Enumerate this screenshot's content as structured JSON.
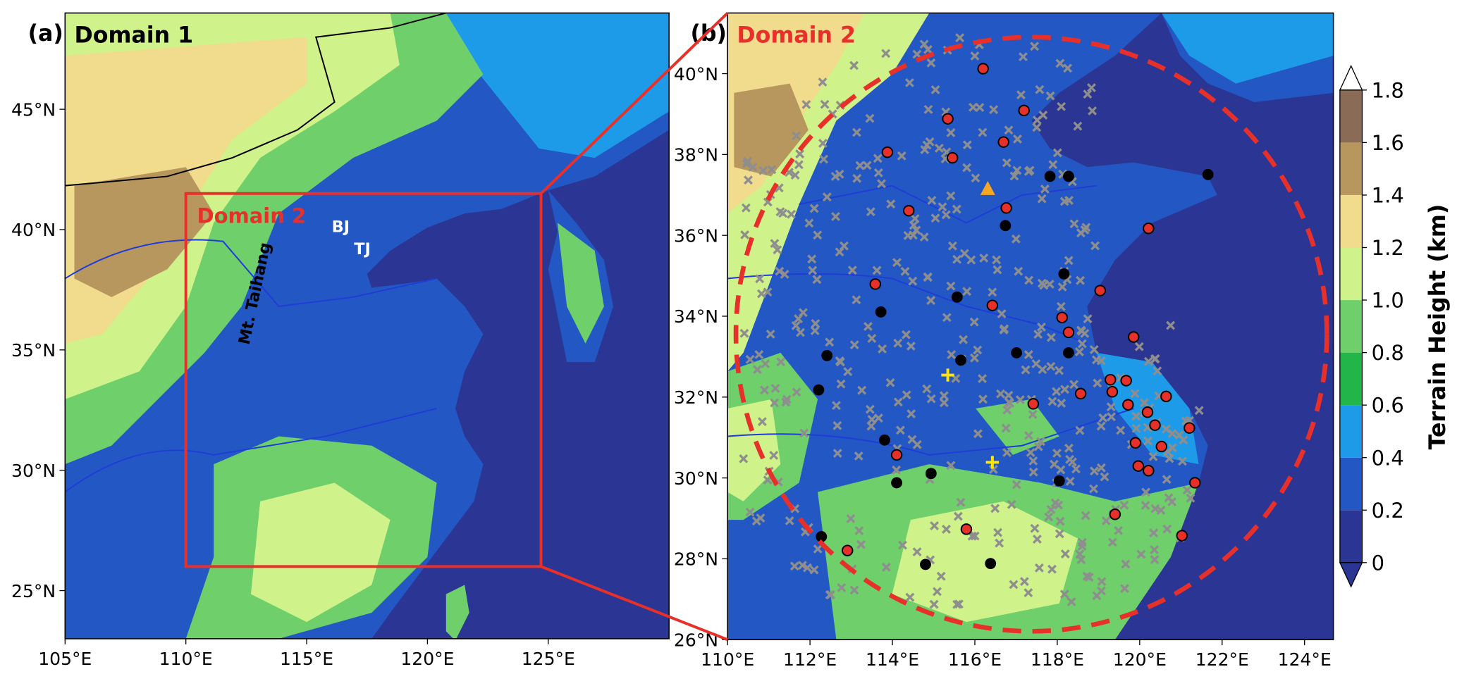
{
  "panels": [
    {
      "label": "(a)",
      "title": "Domain 1",
      "inset_label": "Domain 2",
      "annotations": [
        "BJ",
        "TJ",
        "Mt. Taihang"
      ],
      "xlim": [
        105,
        130
      ],
      "ylim": [
        23,
        49
      ],
      "xticks": [
        {
          "value": 105,
          "label": "105°E"
        },
        {
          "value": 110,
          "label": "110°E"
        },
        {
          "value": 115,
          "label": "115°E"
        },
        {
          "value": 120,
          "label": "120°E"
        },
        {
          "value": 125,
          "label": "125°E"
        }
      ],
      "yticks": [
        {
          "value": 25,
          "label": "25°N"
        },
        {
          "value": 30,
          "label": "30°N"
        },
        {
          "value": 35,
          "label": "35°N"
        },
        {
          "value": 40,
          "label": "40°N"
        },
        {
          "value": 45,
          "label": "45°N"
        }
      ]
    },
    {
      "label": "(b)",
      "title": "Domain 2",
      "xlim": [
        110,
        124.7
      ],
      "ylim": [
        26,
        41.5
      ],
      "xticks": [
        {
          "value": 110,
          "label": "110°E"
        },
        {
          "value": 112,
          "label": "112°E"
        },
        {
          "value": 114,
          "label": "114°E"
        },
        {
          "value": 116,
          "label": "116°E"
        },
        {
          "value": 118,
          "label": "118°E"
        },
        {
          "value": 120,
          "label": "120°E"
        },
        {
          "value": 122,
          "label": "122°E"
        },
        {
          "value": 124,
          "label": "124°E"
        }
      ],
      "yticks": [
        {
          "value": 26,
          "label": "26°N"
        },
        {
          "value": 28,
          "label": "28°N"
        },
        {
          "value": 30,
          "label": "30°N"
        },
        {
          "value": 32,
          "label": "32°N"
        },
        {
          "value": 34,
          "label": "34°N"
        },
        {
          "value": 36,
          "label": "36°N"
        },
        {
          "value": 38,
          "label": "38°N"
        },
        {
          "value": 40,
          "label": "40°N"
        }
      ]
    }
  ],
  "colorbar": {
    "label": "Terrain Height (km)",
    "lim": [
      0,
      1.8
    ],
    "ticks": [
      0,
      0.2,
      0.4,
      0.6,
      0.8,
      {
        "value": 1,
        "label": "1.0"
      },
      1.2,
      1.4,
      1.6,
      1.8
    ],
    "colors": [
      "#2b3593",
      "#2358c4",
      "#1e9be8",
      "#22b54a",
      "#6fcf6a",
      "#cff28a",
      "#f0dc8c",
      "#b8975e",
      "#8a6b55"
    ]
  }
}
